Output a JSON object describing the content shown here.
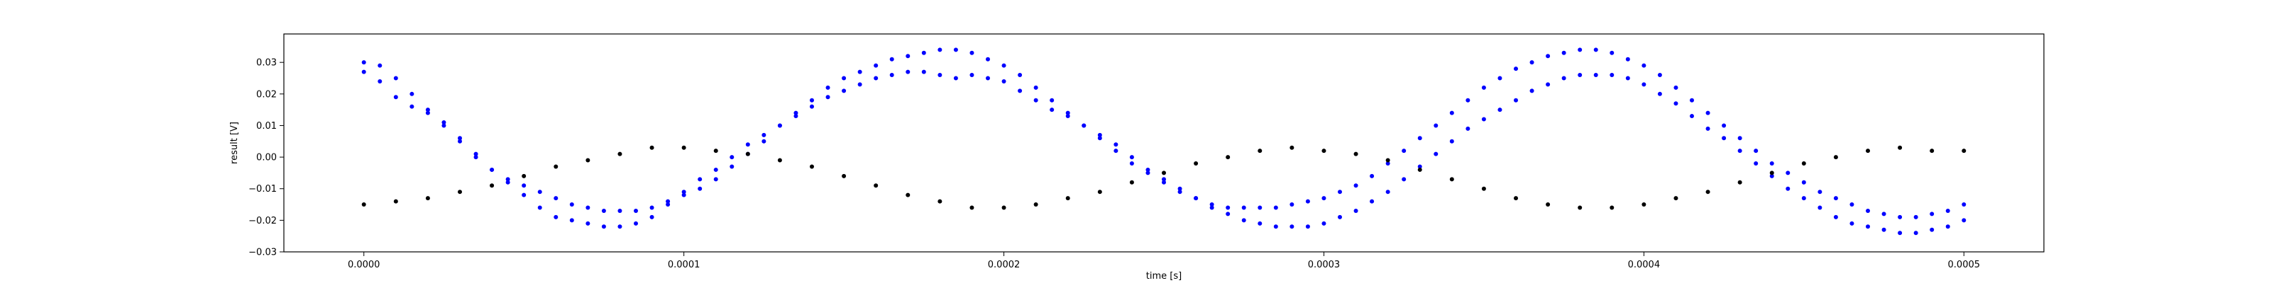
{
  "chart_data": {
    "type": "scatter",
    "xlabel": "time [s]",
    "ylabel": "result [V]",
    "xlim": [
      -2.5e-05,
      0.000525
    ],
    "ylim": [
      -0.03,
      0.039
    ],
    "x_ticks": [
      0.0,
      0.0001,
      0.0002,
      0.0003,
      0.0004,
      0.0005
    ],
    "x_tick_labels": [
      "0.0000",
      "0.0001",
      "0.0002",
      "0.0003",
      "0.0004",
      "0.0005"
    ],
    "y_ticks": [
      -0.03,
      -0.02,
      -0.01,
      0.0,
      0.01,
      0.02,
      0.03
    ],
    "y_tick_labels": [
      "−0.03",
      "−0.02",
      "−0.01",
      "0.00",
      "0.01",
      "0.02",
      "0.03"
    ],
    "grid": false,
    "legend": null,
    "series": [
      {
        "color": "#0000ff",
        "marker": "dot",
        "points": [
          [
            0.0,
            0.027
          ],
          [
            5e-06,
            0.024
          ],
          [
            1e-05,
            0.019
          ],
          [
            1.5e-05,
            0.016
          ],
          [
            2e-05,
            0.014
          ],
          [
            2.5e-05,
            0.011
          ],
          [
            3e-05,
            0.006
          ],
          [
            3.5e-05,
            0.001
          ],
          [
            4e-05,
            -0.004
          ],
          [
            4.5e-05,
            -0.008
          ],
          [
            5e-05,
            -0.012
          ],
          [
            5.5e-05,
            -0.016
          ],
          [
            6e-05,
            -0.019
          ],
          [
            6.5e-05,
            -0.02
          ],
          [
            7e-05,
            -0.021
          ],
          [
            7.5e-05,
            -0.022
          ],
          [
            8e-05,
            -0.022
          ],
          [
            8.5e-05,
            -0.021
          ],
          [
            9e-05,
            -0.019
          ],
          [
            9.5e-05,
            -0.015
          ],
          [
            0.0001,
            -0.011
          ],
          [
            0.000105,
            -0.007
          ],
          [
            0.00011,
            -0.004
          ],
          [
            0.000115,
            0.0
          ],
          [
            0.00012,
            0.004
          ],
          [
            0.000125,
            0.007
          ],
          [
            0.00013,
            0.01
          ],
          [
            0.000135,
            0.013
          ],
          [
            0.00014,
            0.016
          ],
          [
            0.000145,
            0.019
          ],
          [
            0.00015,
            0.021
          ],
          [
            0.000155,
            0.023
          ],
          [
            0.00016,
            0.025
          ],
          [
            0.000165,
            0.026
          ],
          [
            0.00017,
            0.027
          ],
          [
            0.000175,
            0.027
          ],
          [
            0.00018,
            0.026
          ],
          [
            0.000185,
            0.025
          ],
          [
            0.00019,
            0.026
          ],
          [
            0.000195,
            0.025
          ],
          [
            0.0002,
            0.024
          ],
          [
            0.000205,
            0.021
          ],
          [
            0.00021,
            0.018
          ],
          [
            0.000215,
            0.015
          ],
          [
            0.00022,
            0.013
          ],
          [
            0.000225,
            0.01
          ],
          [
            0.00023,
            0.007
          ],
          [
            0.000235,
            0.004
          ],
          [
            0.00024,
            0.0
          ],
          [
            0.000245,
            -0.004
          ],
          [
            0.00025,
            -0.007
          ],
          [
            0.000255,
            -0.01
          ],
          [
            0.00026,
            -0.013
          ],
          [
            0.000265,
            -0.016
          ],
          [
            0.00027,
            -0.018
          ],
          [
            0.000275,
            -0.02
          ],
          [
            0.00028,
            -0.021
          ],
          [
            0.000285,
            -0.022
          ],
          [
            0.00029,
            -0.022
          ],
          [
            0.000295,
            -0.022
          ],
          [
            0.0003,
            -0.021
          ],
          [
            0.000305,
            -0.019
          ],
          [
            0.00031,
            -0.017
          ],
          [
            0.000315,
            -0.014
          ],
          [
            0.00032,
            -0.011
          ],
          [
            0.000325,
            -0.007
          ],
          [
            0.00033,
            -0.003
          ],
          [
            0.000335,
            0.001
          ],
          [
            0.00034,
            0.005
          ],
          [
            0.000345,
            0.009
          ],
          [
            0.00035,
            0.012
          ],
          [
            0.000355,
            0.015
          ],
          [
            0.00036,
            0.018
          ],
          [
            0.000365,
            0.021
          ],
          [
            0.00037,
            0.023
          ],
          [
            0.000375,
            0.025
          ],
          [
            0.00038,
            0.026
          ],
          [
            0.000385,
            0.026
          ],
          [
            0.00039,
            0.026
          ],
          [
            0.000395,
            0.025
          ],
          [
            0.0004,
            0.023
          ],
          [
            0.000405,
            0.02
          ],
          [
            0.00041,
            0.017
          ],
          [
            0.000415,
            0.013
          ],
          [
            0.00042,
            0.009
          ],
          [
            0.000425,
            0.006
          ],
          [
            0.00043,
            0.002
          ],
          [
            0.000435,
            -0.002
          ],
          [
            0.00044,
            -0.006
          ],
          [
            0.000445,
            -0.01
          ],
          [
            0.00045,
            -0.013
          ],
          [
            0.000455,
            -0.016
          ],
          [
            0.00046,
            -0.019
          ],
          [
            0.000465,
            -0.021
          ],
          [
            0.00047,
            -0.022
          ],
          [
            0.000475,
            -0.023
          ],
          [
            0.00048,
            -0.024
          ],
          [
            0.000485,
            -0.024
          ],
          [
            0.00049,
            -0.023
          ],
          [
            0.000495,
            -0.022
          ],
          [
            0.0005,
            -0.02
          ]
        ]
      },
      {
        "color": "#0000ff",
        "marker": "dot",
        "points": [
          [
            0.0,
            0.03
          ],
          [
            5e-06,
            0.029
          ],
          [
            1e-05,
            0.025
          ],
          [
            1.5e-05,
            0.02
          ],
          [
            2e-05,
            0.015
          ],
          [
            2.5e-05,
            0.01
          ],
          [
            3e-05,
            0.005
          ],
          [
            3.5e-05,
            0.0
          ],
          [
            4e-05,
            -0.004
          ],
          [
            4.5e-05,
            -0.007
          ],
          [
            5e-05,
            -0.009
          ],
          [
            5.5e-05,
            -0.011
          ],
          [
            6e-05,
            -0.013
          ],
          [
            6.5e-05,
            -0.015
          ],
          [
            7e-05,
            -0.016
          ],
          [
            7.5e-05,
            -0.017
          ],
          [
            8e-05,
            -0.017
          ],
          [
            8.5e-05,
            -0.017
          ],
          [
            9e-05,
            -0.016
          ],
          [
            9.5e-05,
            -0.014
          ],
          [
            0.0001,
            -0.012
          ],
          [
            0.000105,
            -0.01
          ],
          [
            0.00011,
            -0.007
          ],
          [
            0.000115,
            -0.003
          ],
          [
            0.00012,
            0.001
          ],
          [
            0.000125,
            0.005
          ],
          [
            0.00013,
            0.01
          ],
          [
            0.000135,
            0.014
          ],
          [
            0.00014,
            0.018
          ],
          [
            0.000145,
            0.022
          ],
          [
            0.00015,
            0.025
          ],
          [
            0.000155,
            0.027
          ],
          [
            0.00016,
            0.029
          ],
          [
            0.000165,
            0.031
          ],
          [
            0.00017,
            0.032
          ],
          [
            0.000175,
            0.033
          ],
          [
            0.00018,
            0.034
          ],
          [
            0.000185,
            0.034
          ],
          [
            0.00019,
            0.033
          ],
          [
            0.000195,
            0.031
          ],
          [
            0.0002,
            0.029
          ],
          [
            0.000205,
            0.026
          ],
          [
            0.00021,
            0.022
          ],
          [
            0.000215,
            0.018
          ],
          [
            0.00022,
            0.014
          ],
          [
            0.000225,
            0.01
          ],
          [
            0.00023,
            0.006
          ],
          [
            0.000235,
            0.002
          ],
          [
            0.00024,
            -0.002
          ],
          [
            0.000245,
            -0.005
          ],
          [
            0.00025,
            -0.008
          ],
          [
            0.000255,
            -0.011
          ],
          [
            0.00026,
            -0.013
          ],
          [
            0.000265,
            -0.015
          ],
          [
            0.00027,
            -0.016
          ],
          [
            0.000275,
            -0.016
          ],
          [
            0.00028,
            -0.016
          ],
          [
            0.000285,
            -0.016
          ],
          [
            0.00029,
            -0.015
          ],
          [
            0.000295,
            -0.014
          ],
          [
            0.0003,
            -0.013
          ],
          [
            0.000305,
            -0.011
          ],
          [
            0.00031,
            -0.009
          ],
          [
            0.000315,
            -0.006
          ],
          [
            0.00032,
            -0.002
          ],
          [
            0.000325,
            0.002
          ],
          [
            0.00033,
            0.006
          ],
          [
            0.000335,
            0.01
          ],
          [
            0.00034,
            0.014
          ],
          [
            0.000345,
            0.018
          ],
          [
            0.00035,
            0.022
          ],
          [
            0.000355,
            0.025
          ],
          [
            0.00036,
            0.028
          ],
          [
            0.000365,
            0.03
          ],
          [
            0.00037,
            0.032
          ],
          [
            0.000375,
            0.033
          ],
          [
            0.00038,
            0.034
          ],
          [
            0.000385,
            0.034
          ],
          [
            0.00039,
            0.033
          ],
          [
            0.000395,
            0.031
          ],
          [
            0.0004,
            0.029
          ],
          [
            0.000405,
            0.026
          ],
          [
            0.00041,
            0.022
          ],
          [
            0.000415,
            0.018
          ],
          [
            0.00042,
            0.014
          ],
          [
            0.000425,
            0.01
          ],
          [
            0.00043,
            0.006
          ],
          [
            0.000435,
            0.002
          ],
          [
            0.00044,
            -0.002
          ],
          [
            0.000445,
            -0.005
          ],
          [
            0.00045,
            -0.008
          ],
          [
            0.000455,
            -0.011
          ],
          [
            0.00046,
            -0.013
          ],
          [
            0.000465,
            -0.015
          ],
          [
            0.00047,
            -0.017
          ],
          [
            0.000475,
            -0.018
          ],
          [
            0.00048,
            -0.019
          ],
          [
            0.000485,
            -0.019
          ],
          [
            0.00049,
            -0.018
          ],
          [
            0.000495,
            -0.017
          ],
          [
            0.0005,
            -0.015
          ]
        ]
      },
      {
        "color": "#000000",
        "marker": "dot",
        "points": [
          [
            0.0,
            -0.015
          ],
          [
            1e-05,
            -0.014
          ],
          [
            2e-05,
            -0.013
          ],
          [
            3e-05,
            -0.011
          ],
          [
            4e-05,
            -0.009
          ],
          [
            5e-05,
            -0.006
          ],
          [
            6e-05,
            -0.003
          ],
          [
            7e-05,
            -0.001
          ],
          [
            8e-05,
            0.001
          ],
          [
            9e-05,
            0.003
          ],
          [
            0.0001,
            0.003
          ],
          [
            0.00011,
            0.002
          ],
          [
            0.00012,
            0.001
          ],
          [
            0.00013,
            -0.001
          ],
          [
            0.00014,
            -0.003
          ],
          [
            0.00015,
            -0.006
          ],
          [
            0.00016,
            -0.009
          ],
          [
            0.00017,
            -0.012
          ],
          [
            0.00018,
            -0.014
          ],
          [
            0.00019,
            -0.016
          ],
          [
            0.0002,
            -0.016
          ],
          [
            0.00021,
            -0.015
          ],
          [
            0.00022,
            -0.013
          ],
          [
            0.00023,
            -0.011
          ],
          [
            0.00024,
            -0.008
          ],
          [
            0.00025,
            -0.005
          ],
          [
            0.00026,
            -0.002
          ],
          [
            0.00027,
            0.0
          ],
          [
            0.00028,
            0.002
          ],
          [
            0.00029,
            0.003
          ],
          [
            0.0003,
            0.002
          ],
          [
            0.00031,
            0.001
          ],
          [
            0.00032,
            -0.001
          ],
          [
            0.00033,
            -0.004
          ],
          [
            0.00034,
            -0.007
          ],
          [
            0.00035,
            -0.01
          ],
          [
            0.00036,
            -0.013
          ],
          [
            0.00037,
            -0.015
          ],
          [
            0.00038,
            -0.016
          ],
          [
            0.00039,
            -0.016
          ],
          [
            0.0004,
            -0.015
          ],
          [
            0.00041,
            -0.013
          ],
          [
            0.00042,
            -0.011
          ],
          [
            0.00043,
            -0.008
          ],
          [
            0.00044,
            -0.005
          ],
          [
            0.00045,
            -0.002
          ],
          [
            0.00046,
            0.0
          ],
          [
            0.00047,
            0.002
          ],
          [
            0.00048,
            0.003
          ],
          [
            0.00049,
            0.002
          ],
          [
            0.0005,
            0.002
          ]
        ]
      }
    ]
  }
}
